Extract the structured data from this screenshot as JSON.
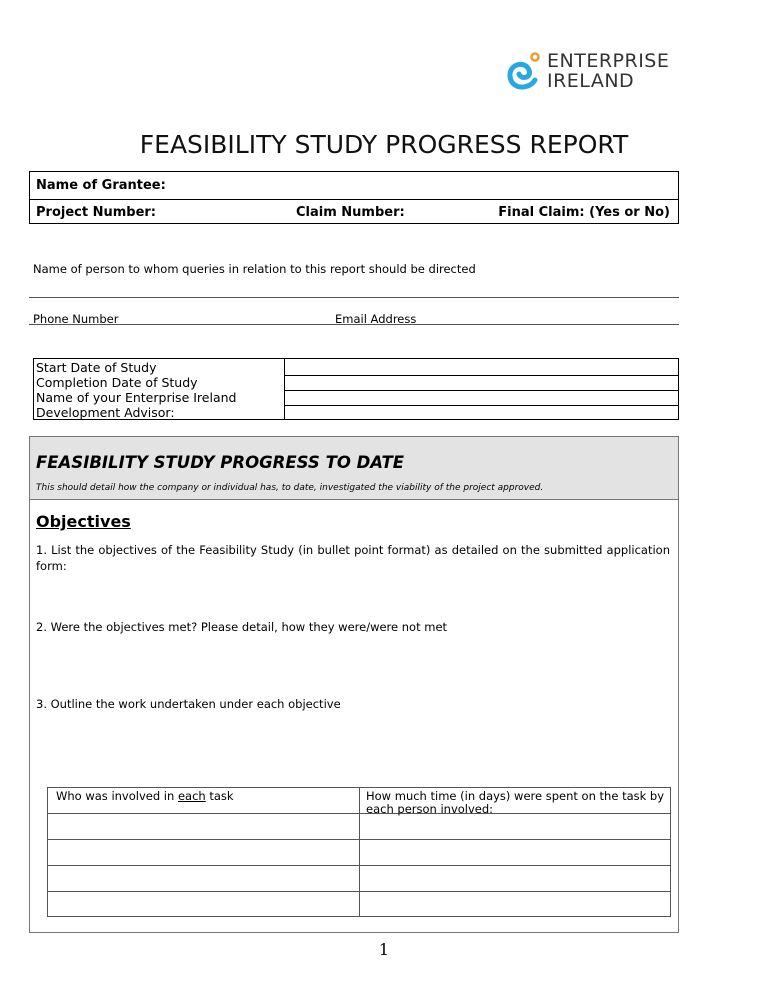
{
  "logo": {
    "line1": "ENTERPRISE",
    "line2": "IRELAND",
    "colors": {
      "swirl": "#29a8e0",
      "dot": "#f39a2b"
    }
  },
  "title": "FEASIBILITY STUDY PROGRESS REPORT",
  "header_table": {
    "grantee": "Name of Grantee:",
    "project_number": "Project Number:",
    "claim_number": "Claim Number:",
    "final_claim": "Final Claim: (Yes or No)"
  },
  "contact": {
    "queries_label": "Name of person to whom queries in relation to this report should be directed",
    "phone_label": "Phone Number",
    "email_label": "Email Address"
  },
  "dates_table": {
    "start": "Start Date of Study",
    "completion": "Completion Date of Study",
    "advisor": "Name of your Enterprise Ireland Development Advisor:"
  },
  "progress": {
    "heading": "FEASIBILITY STUDY PROGRESS TO DATE",
    "subheading": "This should detail how the company or individual has, to date, investigated the viability of the project approved.",
    "objectives_heading": "Objectives",
    "q1": "1. List the objectives of the Feasibility Study (in bullet point format) as detailed on the submitted application form:",
    "q2": "2. Were the objectives met? Please detail, how they were/were not met",
    "q3": "3. Outline the work undertaken under each objective",
    "task_table": {
      "col1_pre": "Who was involved in ",
      "col1_u": "each",
      "col1_post": " task",
      "col2": "How much time (in days) were spent on the task by each person involved:"
    }
  },
  "page_number": "1"
}
